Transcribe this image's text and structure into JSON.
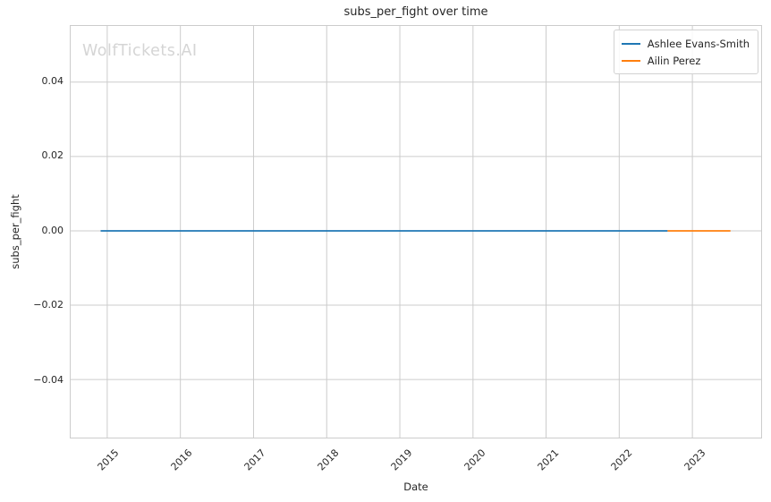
{
  "figure": {
    "watermark": "WolfTickets.AI"
  },
  "chart_data": {
    "type": "line",
    "title": "subs_per_fight over time",
    "xlabel": "Date",
    "ylabel": "subs_per_fight",
    "x_tick_values": [
      2015,
      2016,
      2017,
      2018,
      2019,
      2020,
      2021,
      2022,
      2023
    ],
    "x_tick_labels": [
      "2015",
      "2016",
      "2017",
      "2018",
      "2019",
      "2020",
      "2021",
      "2022",
      "2023"
    ],
    "y_tick_values": [
      0.04,
      0.02,
      0.0,
      -0.02,
      -0.04
    ],
    "y_tick_labels": [
      "0.04",
      "0.02",
      "0.00",
      "−0.02",
      "−0.04"
    ],
    "xlim": [
      2014.5,
      2023.94
    ],
    "ylim": [
      -0.0556,
      0.0551
    ],
    "grid": true,
    "legend_position": "upper right",
    "x_tick_rotation_deg": 45,
    "series": [
      {
        "name": "Ashlee Evans-Smith",
        "color": "#1f77b4",
        "x": [
          2014.91,
          2022.66
        ],
        "y": [
          0.0,
          0.0
        ]
      },
      {
        "name": "Ailin Perez",
        "color": "#ff7f0e",
        "x": [
          2022.66,
          2023.52
        ],
        "y": [
          0.0,
          0.0
        ]
      }
    ],
    "colors": {
      "grid": "#cccccc",
      "spine": "#cccccc",
      "background": "#ffffff",
      "watermark": "#d5d5d5",
      "text": "#262626"
    }
  }
}
